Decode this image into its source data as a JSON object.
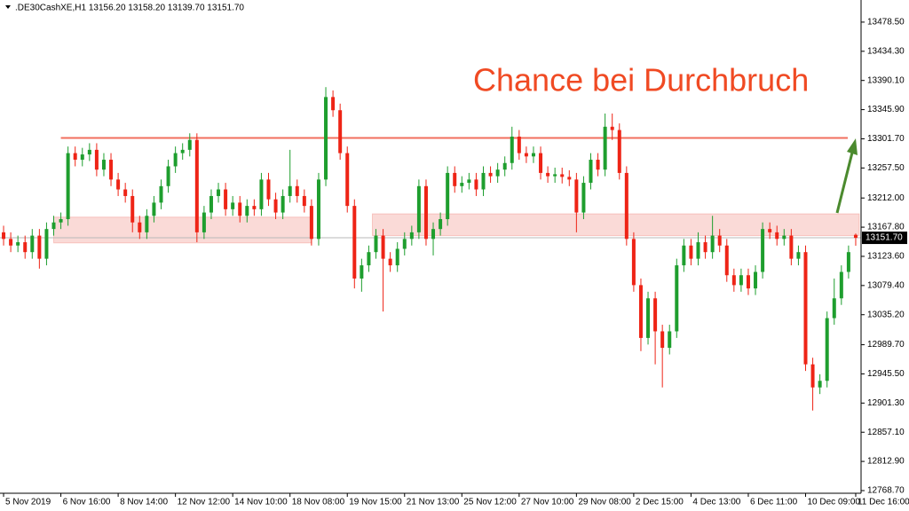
{
  "chart_data": {
    "type": "candlestick",
    "header": ".DE30CashXE,H1  13156.20 13158.20 13139.70 13151.70",
    "annotation": "Chance bei Durchbruch",
    "up_color": "#1e9e2e",
    "down_color": "#ee2416",
    "grid": false,
    "ylim": [
      12766,
      13512
    ],
    "yticks": [
      {
        "value": 13478.5,
        "label": "13478.50"
      },
      {
        "value": 13434.3,
        "label": "13434.30"
      },
      {
        "value": 13390.1,
        "label": "13390.10"
      },
      {
        "value": 13345.9,
        "label": "13345.90"
      },
      {
        "value": 13301.7,
        "label": "13301.70"
      },
      {
        "value": 13257.5,
        "label": "13257.50"
      },
      {
        "value": 13212,
        "label": "13212.00"
      },
      {
        "value": 13167.8,
        "label": "13167.80"
      },
      {
        "value": 13123.6,
        "label": "13123.60"
      },
      {
        "value": 13079.4,
        "label": "13079.40"
      },
      {
        "value": 13035.2,
        "label": "13035.20"
      },
      {
        "value": 12989.7,
        "label": "12989.70"
      },
      {
        "value": 12945.5,
        "label": "12945.50"
      },
      {
        "value": 12901.3,
        "label": "12901.30"
      },
      {
        "value": 12857.1,
        "label": "12857.10"
      },
      {
        "value": 12812.9,
        "label": "12812.90"
      },
      {
        "value": 12768.7,
        "label": "12768.70"
      }
    ],
    "last_price": {
      "value": 13151.7,
      "label": "13151.70"
    },
    "resistance": 13303,
    "zones": [
      [
        13144,
        13183
      ],
      [
        13155,
        13188
      ]
    ],
    "categories": [
      "5 Nov 2019",
      null,
      null,
      null,
      null,
      null,
      null,
      null,
      "6 Nov 16:00",
      null,
      null,
      null,
      null,
      null,
      null,
      null,
      "8 Nov 14:00",
      null,
      null,
      null,
      null,
      null,
      null,
      null,
      "12 Nov 12:00",
      null,
      null,
      null,
      null,
      null,
      null,
      null,
      "14 Nov 10:00",
      null,
      null,
      null,
      null,
      null,
      null,
      null,
      "18 Nov 08:00",
      null,
      null,
      null,
      null,
      null,
      null,
      null,
      "19 Nov 15:00",
      null,
      null,
      null,
      null,
      null,
      null,
      null,
      "21 Nov 13:00",
      null,
      null,
      null,
      null,
      null,
      null,
      null,
      "25 Nov 12:00",
      null,
      null,
      null,
      null,
      null,
      null,
      null,
      "27 Nov 10:00",
      null,
      null,
      null,
      null,
      null,
      null,
      null,
      "29 Nov 08:00",
      null,
      null,
      null,
      null,
      null,
      null,
      null,
      "2 Dec 15:00",
      null,
      null,
      null,
      null,
      null,
      null,
      null,
      "4 Dec 13:00",
      null,
      null,
      null,
      null,
      null,
      null,
      null,
      "6 Dec 11:00",
      null,
      null,
      null,
      null,
      null,
      null,
      null,
      "10 Dec 09:00",
      null,
      null,
      null,
      null,
      null,
      null,
      "11 Dec 16:00"
    ],
    "open": [
      13160,
      13150,
      13140,
      13145,
      13130,
      13155,
      13120,
      13165,
      13175,
      13180,
      13280,
      13270,
      13278,
      13285,
      13255,
      13270,
      13240,
      13225,
      13215,
      13175,
      13160,
      13185,
      13205,
      13230,
      13260,
      13280,
      13285,
      13300,
      13160,
      13190,
      13215,
      13225,
      13195,
      13205,
      13185,
      13200,
      13195,
      13240,
      13210,
      13190,
      13215,
      13230,
      13215,
      13200,
      13150,
      13240,
      13365,
      13345,
      13280,
      13200,
      13090,
      13110,
      13130,
      13155,
      13120,
      13110,
      13135,
      13150,
      13160,
      13230,
      13150,
      13165,
      13180,
      13250,
      13230,
      13235,
      13240,
      13225,
      13250,
      13245,
      13255,
      13265,
      13305,
      13280,
      13275,
      13280,
      13250,
      13245,
      13248,
      13244,
      13240,
      13190,
      13235,
      13270,
      13255,
      13320,
      13315,
      13250,
      13150,
      13080,
      13000,
      13060,
      13010,
      12985,
      13010,
      13110,
      13140,
      13120,
      13145,
      13130,
      13155,
      13140,
      13095,
      13080,
      13095,
      13075,
      13100,
      13165,
      13160,
      13150,
      13155,
      13120,
      13130,
      12960,
      12925,
      12935,
      13030,
      13060,
      13100,
      13156.2
    ],
    "high": [
      13170,
      13160,
      13155,
      13155,
      13165,
      13165,
      13175,
      13185,
      13190,
      13290,
      13290,
      13288,
      13295,
      13295,
      13280,
      13280,
      13250,
      13235,
      13225,
      13185,
      13195,
      13215,
      13240,
      13270,
      13290,
      13295,
      13310,
      13310,
      13200,
      13225,
      13235,
      13235,
      13215,
      13215,
      13210,
      13210,
      13250,
      13250,
      13220,
      13225,
      13285,
      13240,
      13225,
      13210,
      13250,
      13380,
      13375,
      13355,
      13290,
      13210,
      13120,
      13140,
      13165,
      13165,
      13130,
      13145,
      13160,
      13170,
      13240,
      13240,
      13175,
      13190,
      13260,
      13260,
      13245,
      13250,
      13250,
      13260,
      13260,
      13265,
      13275,
      13320,
      13315,
      13290,
      13290,
      13290,
      13260,
      13258,
      13258,
      13254,
      13250,
      13245,
      13280,
      13280,
      13340,
      13340,
      13325,
      13260,
      13160,
      13090,
      13070,
      13070,
      13020,
      13020,
      13120,
      13150,
      13150,
      13160,
      13155,
      13185,
      13165,
      13150,
      13105,
      13105,
      13105,
      13110,
      13175,
      13175,
      13170,
      13165,
      13165,
      13140,
      13140,
      12970,
      12945,
      13040,
      13090,
      13110,
      13140,
      13158.2
    ],
    "low": [
      13140,
      13130,
      13130,
      13120,
      13120,
      13105,
      13110,
      13155,
      13165,
      13170,
      13260,
      13260,
      13268,
      13245,
      13245,
      13230,
      13215,
      13205,
      13160,
      13150,
      13150,
      13175,
      13195,
      13220,
      13250,
      13270,
      13275,
      13145,
      13150,
      13180,
      13205,
      13185,
      13185,
      13175,
      13175,
      13185,
      13185,
      13200,
      13180,
      13180,
      13205,
      13205,
      13190,
      13140,
      13140,
      13230,
      13335,
      13270,
      13190,
      13075,
      13070,
      13100,
      13120,
      13040,
      13100,
      13100,
      13125,
      13140,
      13150,
      13140,
      13125,
      13155,
      13170,
      13220,
      13220,
      13225,
      13215,
      13215,
      13235,
      13235,
      13245,
      13255,
      13270,
      13265,
      13265,
      13240,
      13235,
      13235,
      13234,
      13230,
      13160,
      13180,
      13225,
      13245,
      13245,
      13300,
      13240,
      13140,
      13070,
      12980,
      12990,
      12960,
      12925,
      12975,
      13000,
      13100,
      13110,
      13110,
      13120,
      13120,
      13130,
      13085,
      13070,
      13070,
      13065,
      13065,
      13090,
      13150,
      13140,
      13140,
      13110,
      13110,
      12950,
      12890,
      12915,
      12925,
      13020,
      13050,
      13090,
      13139.7
    ],
    "close": [
      13150,
      13140,
      13145,
      13130,
      13155,
      13120,
      13165,
      13175,
      13180,
      13280,
      13270,
      13278,
      13285,
      13255,
      13270,
      13240,
      13225,
      13215,
      13175,
      13160,
      13185,
      13205,
      13230,
      13260,
      13280,
      13285,
      13300,
      13160,
      13190,
      13215,
      13225,
      13195,
      13205,
      13185,
      13200,
      13195,
      13240,
      13210,
      13190,
      13215,
      13230,
      13215,
      13200,
      13150,
      13240,
      13365,
      13345,
      13280,
      13200,
      13090,
      13110,
      13130,
      13155,
      13120,
      13110,
      13135,
      13150,
      13160,
      13230,
      13150,
      13165,
      13180,
      13250,
      13230,
      13235,
      13240,
      13225,
      13250,
      13245,
      13255,
      13265,
      13305,
      13280,
      13275,
      13280,
      13250,
      13245,
      13248,
      13244,
      13240,
      13190,
      13235,
      13270,
      13255,
      13320,
      13315,
      13250,
      13150,
      13080,
      13000,
      13060,
      13010,
      12985,
      13010,
      13110,
      13140,
      13120,
      13145,
      13130,
      13155,
      13140,
      13095,
      13080,
      13095,
      13075,
      13100,
      13165,
      13160,
      13150,
      13155,
      13120,
      13130,
      12960,
      12925,
      12935,
      13030,
      13060,
      13100,
      13130,
      13151.7
    ]
  }
}
